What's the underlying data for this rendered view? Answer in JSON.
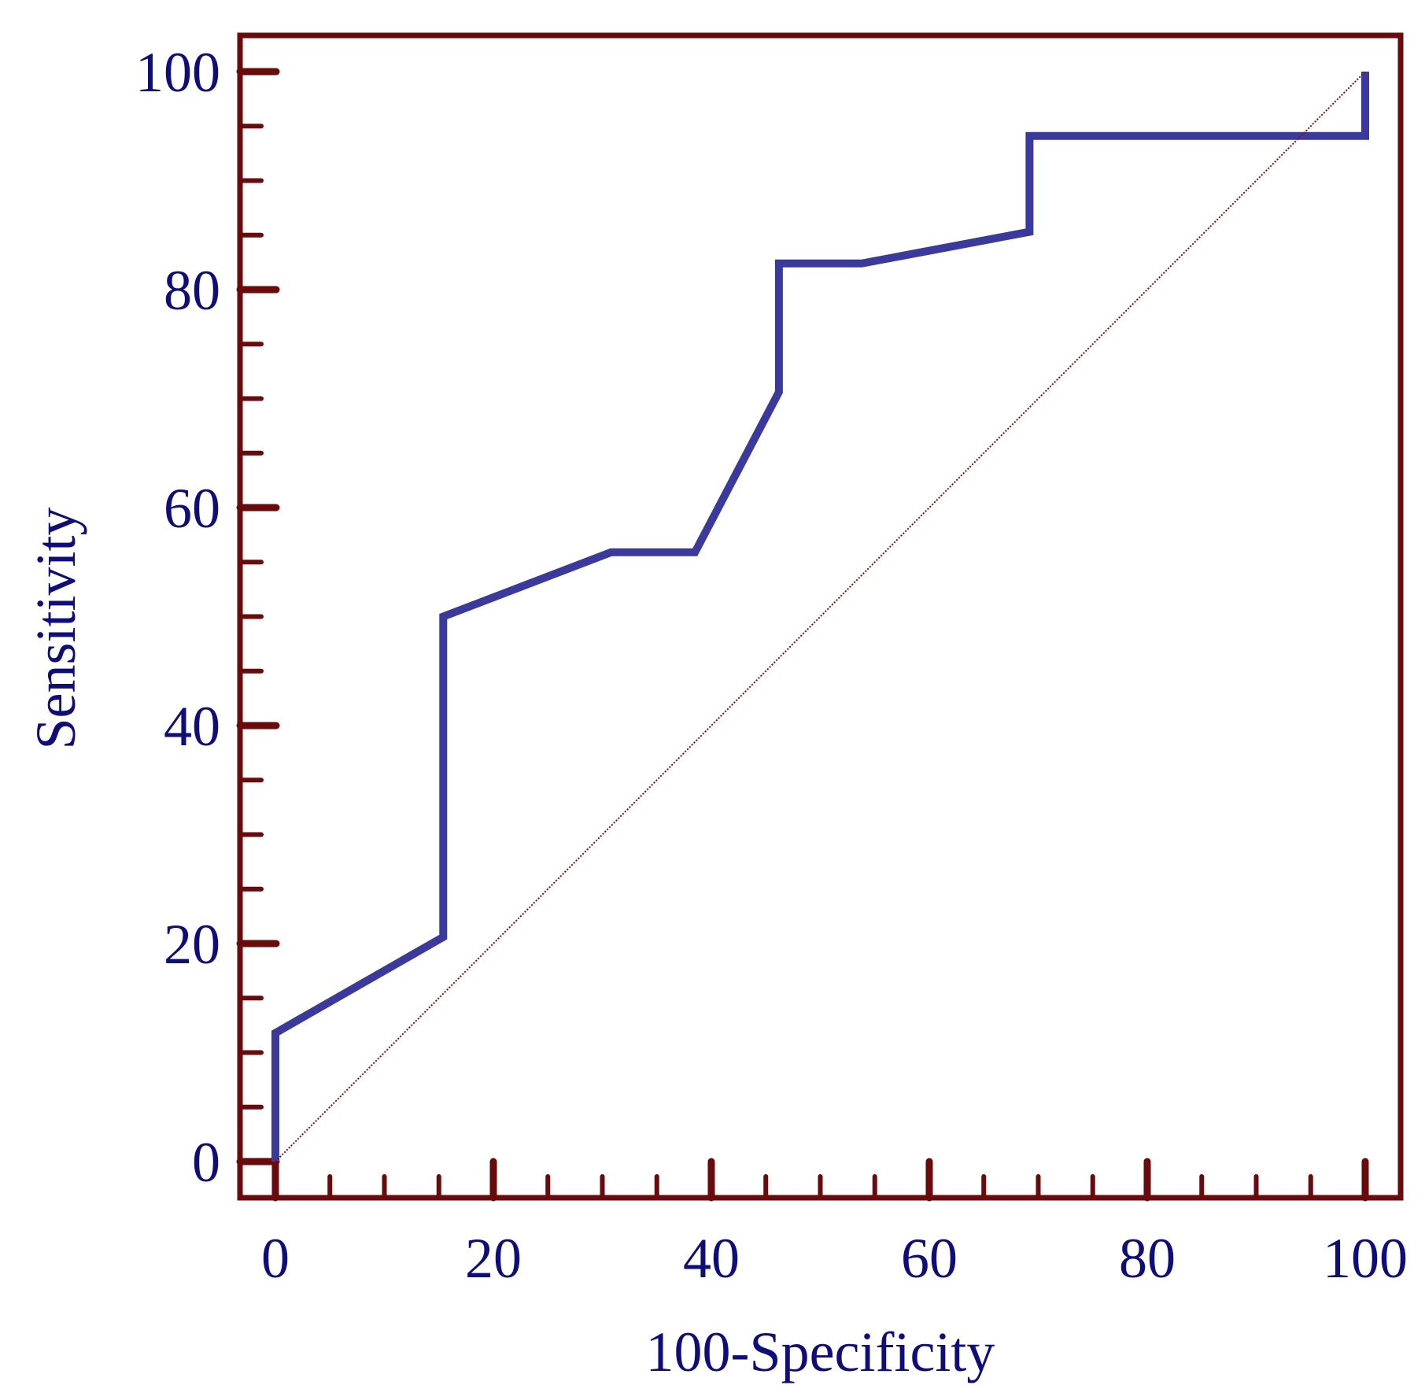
{
  "chart_data": {
    "type": "line",
    "title": "",
    "xlabel": "100-Specificity",
    "ylabel": "Sensitivity",
    "xlim": [
      0,
      100
    ],
    "ylim": [
      0,
      100
    ],
    "x_ticks": [
      0,
      20,
      40,
      60,
      80,
      100
    ],
    "y_ticks": [
      0,
      20,
      40,
      60,
      80,
      100
    ],
    "x_tick_labels": [
      "0",
      "20",
      "40",
      "60",
      "80",
      "100"
    ],
    "y_tick_labels": [
      "0",
      "20",
      "40",
      "60",
      "80",
      "100"
    ],
    "minor_tick_step": 5,
    "grid": false,
    "legend": "none",
    "series": [
      {
        "kind": "roc-curve",
        "color": "#3a3a9e",
        "style": "solid",
        "x": [
          0,
          0,
          15.4,
          15.4,
          30.8,
          38.5,
          46.2,
          46.2,
          53.8,
          69.2,
          69.2,
          100,
          100
        ],
        "y": [
          0,
          11.8,
          20.6,
          50,
          55.9,
          55.9,
          70.6,
          82.4,
          82.4,
          85.3,
          94.1,
          94.1,
          100
        ]
      },
      {
        "kind": "reference-diagonal",
        "color": "#7a1010",
        "style": "dotted",
        "x": [
          0,
          100
        ],
        "y": [
          0,
          100
        ]
      }
    ],
    "frame_color": "#6b0a0a",
    "text_color": "#0d0d80"
  }
}
